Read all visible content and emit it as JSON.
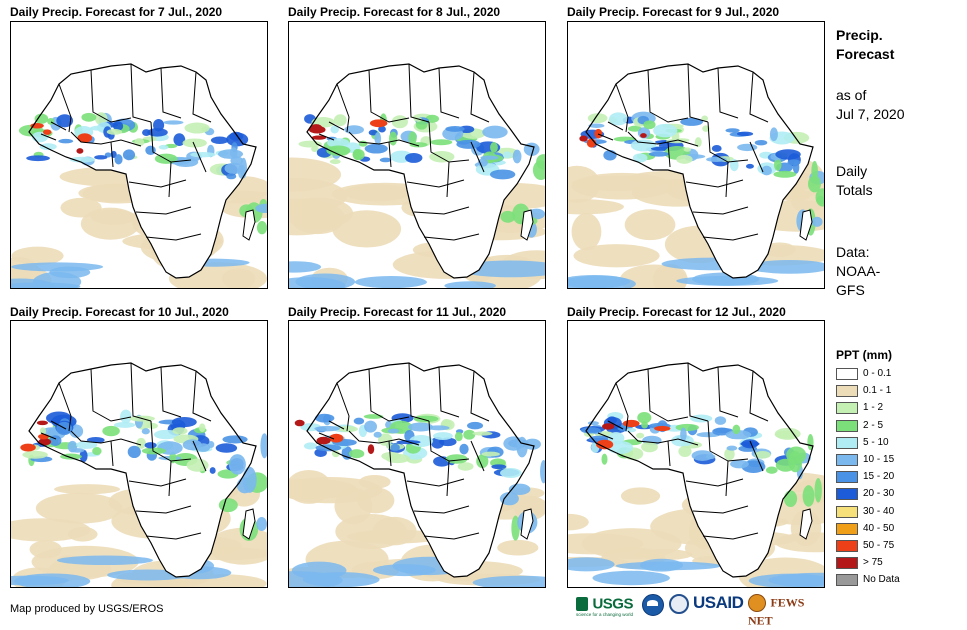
{
  "panels": [
    {
      "title": "Daily Precip. Forecast for 7 Jul., 2020"
    },
    {
      "title": "Daily Precip. Forecast for 8 Jul., 2020"
    },
    {
      "title": "Daily Precip. Forecast for 9 Jul., 2020"
    },
    {
      "title": "Daily Precip. Forecast for 10 Jul., 2020"
    },
    {
      "title": "Daily Precip. Forecast for 11 Jul., 2020"
    },
    {
      "title": "Daily Precip. Forecast for 12 Jul., 2020"
    }
  ],
  "sidebar": {
    "title_line1": "Precip.",
    "title_line2": "Forecast",
    "asof_line1": "as of",
    "asof_line2": "Jul 7, 2020",
    "totals_line1": "Daily",
    "totals_line2": "Totals",
    "data_line1": "Data:",
    "data_line2": "NOAA-",
    "data_line3": "GFS"
  },
  "legend": {
    "title": "PPT (mm)",
    "items": [
      {
        "label": "0 - 0.1",
        "color": "#ffffff"
      },
      {
        "label": "0.1 - 1",
        "color": "#ecdcb8"
      },
      {
        "label": "1 - 2",
        "color": "#c4f0b4"
      },
      {
        "label": "2 - 5",
        "color": "#7be07a"
      },
      {
        "label": "5 - 10",
        "color": "#b0ecf4"
      },
      {
        "label": "10 - 15",
        "color": "#7ab8ee"
      },
      {
        "label": "15 - 20",
        "color": "#4a92e6"
      },
      {
        "label": "20 - 30",
        "color": "#1c5cd8"
      },
      {
        "label": "30 - 40",
        "color": "#f6e07a"
      },
      {
        "label": "40 - 50",
        "color": "#f0a018"
      },
      {
        "label": "50 - 75",
        "color": "#ee4018"
      },
      {
        "label": "> 75",
        "color": "#b41818"
      },
      {
        "label": "No Data",
        "color": "#999999"
      }
    ]
  },
  "footer": {
    "credit": "Map produced by USGS/EROS",
    "logo_usgs": "USGS",
    "logo_usgs_tagline": "science for a changing world",
    "logo_usaid": "USAID",
    "logo_fews": "FEWS NET"
  }
}
